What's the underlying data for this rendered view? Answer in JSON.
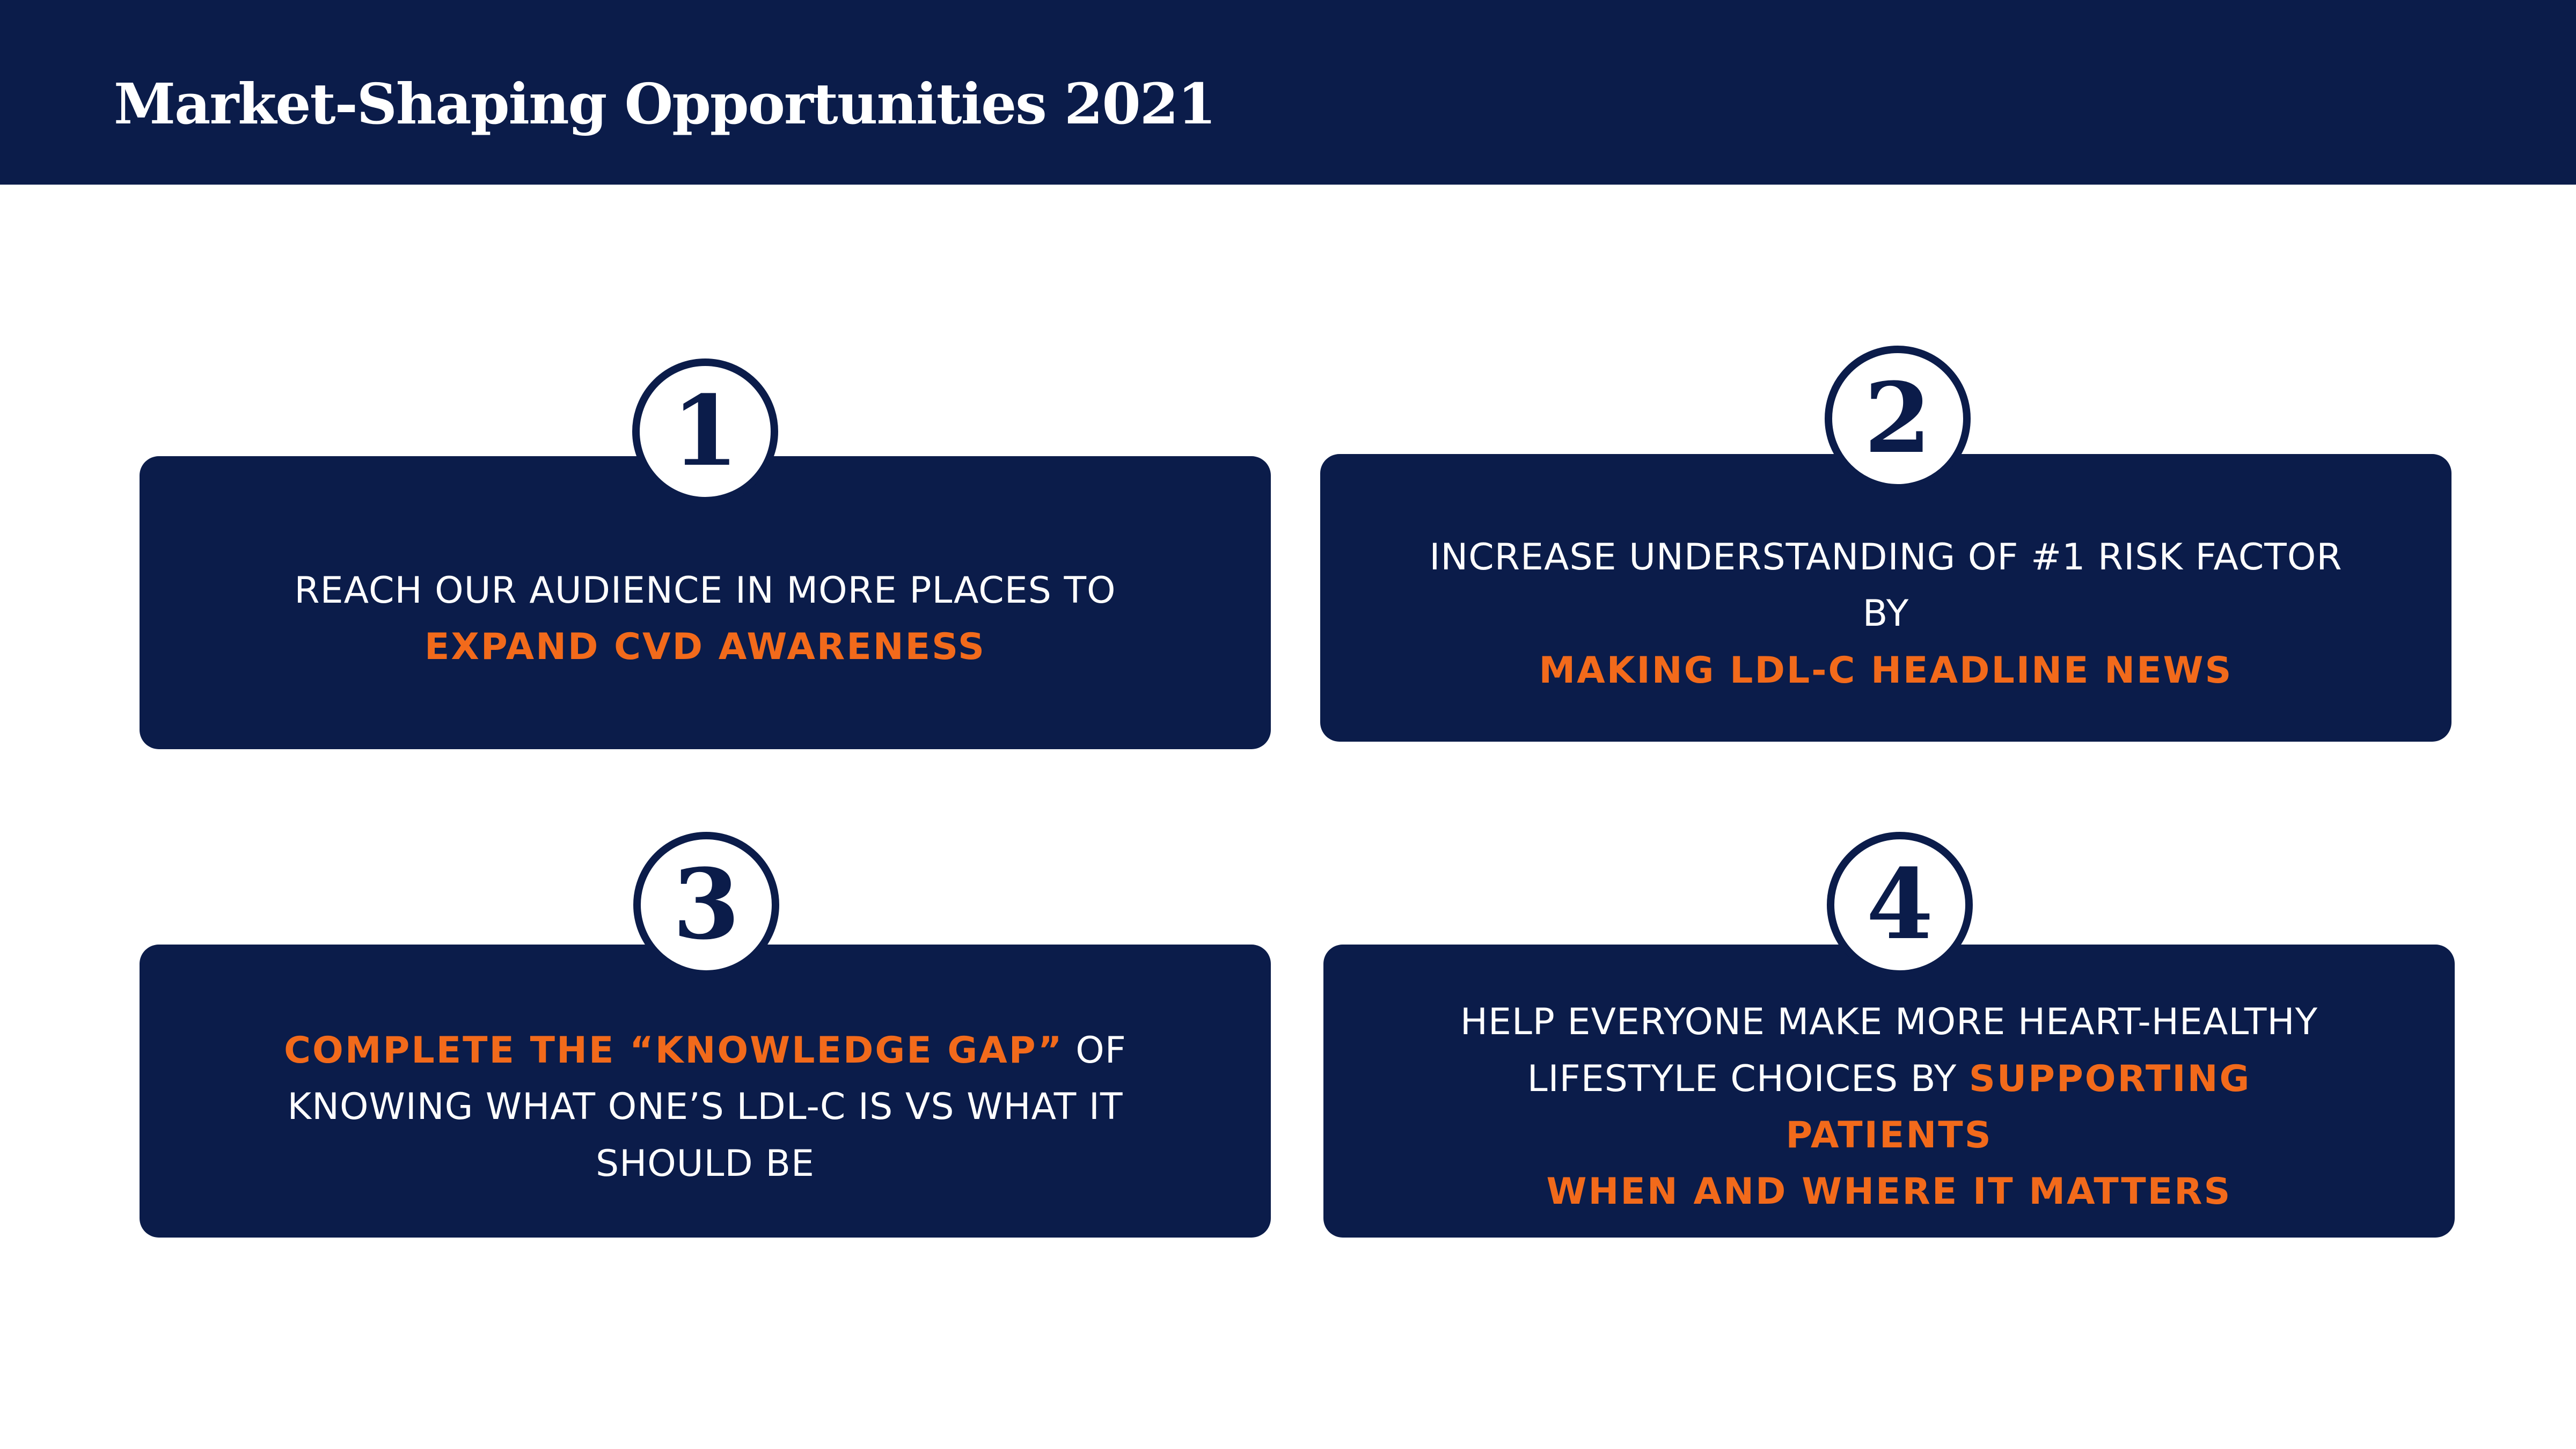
{
  "header": {
    "title": "Market-Shaping Opportunities 2021"
  },
  "colors": {
    "navy": "#0b1c4a",
    "orange": "#f26a1b",
    "white": "#ffffff"
  },
  "cards": [
    {
      "number": "1",
      "parts": [
        {
          "text": "REACH OUR AUDIENCE IN MORE PLACES TO",
          "highlight": false,
          "break_after": true
        },
        {
          "text": "EXPAND CVD AWARENESS",
          "highlight": true,
          "break_after": false
        }
      ]
    },
    {
      "number": "2",
      "parts": [
        {
          "text": "INCREASE UNDERSTANDING OF #1 RISK FACTOR BY",
          "highlight": false,
          "break_after": true
        },
        {
          "text": "MAKING LDL-C HEADLINE NEWS",
          "highlight": true,
          "break_after": false
        }
      ]
    },
    {
      "number": "3",
      "parts": [
        {
          "text": "COMPLETE THE “KNOWLEDGE GAP”",
          "highlight": true,
          "break_after": false
        },
        {
          "text": " OF",
          "highlight": false,
          "break_after": true
        },
        {
          "text": "KNOWING WHAT ONE’S LDL-C IS VS WHAT IT",
          "highlight": false,
          "break_after": true
        },
        {
          "text": "SHOULD BE",
          "highlight": false,
          "break_after": false
        }
      ]
    },
    {
      "number": "4",
      "parts": [
        {
          "text": "HELP EVERYONE MAKE MORE HEART-HEALTHY",
          "highlight": false,
          "break_after": true
        },
        {
          "text": "LIFESTYLE CHOICES BY ",
          "highlight": false,
          "break_after": false
        },
        {
          "text": "SUPPORTING PATIENTS",
          "highlight": true,
          "break_after": true
        },
        {
          "text": "WHEN AND WHERE IT MATTERS",
          "highlight": true,
          "break_after": false
        }
      ]
    }
  ]
}
